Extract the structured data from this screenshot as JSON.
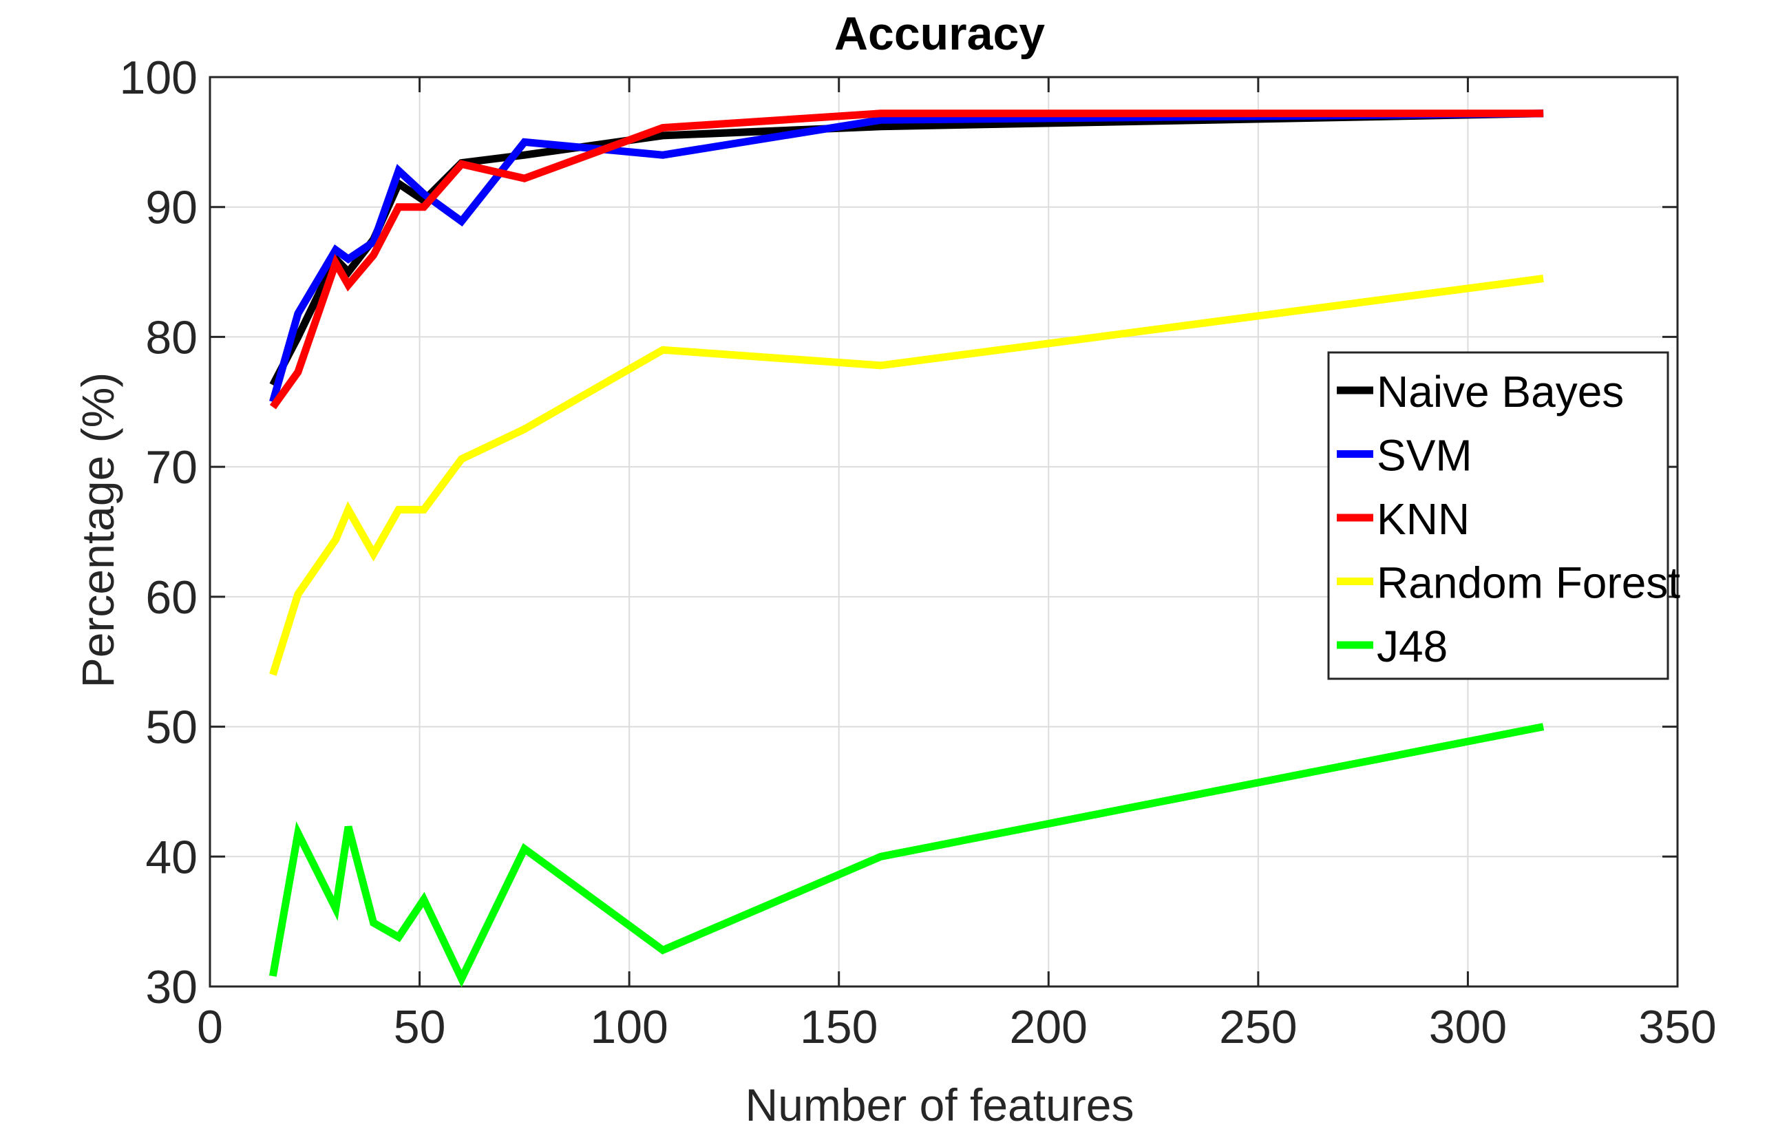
{
  "chart_data": {
    "type": "line",
    "title": "Accuracy",
    "xlabel": "Number of features",
    "ylabel": "Percentage (%)",
    "xlim": [
      0,
      350
    ],
    "ylim": [
      30,
      100
    ],
    "xticks": [
      0,
      50,
      100,
      150,
      200,
      250,
      300,
      350
    ],
    "yticks": [
      30,
      40,
      50,
      60,
      70,
      80,
      90,
      100
    ],
    "grid": true,
    "legend_position": "right",
    "series": [
      {
        "name": "Naive Bayes",
        "color": "#000000",
        "x": [
          15,
          21,
          30,
          33,
          39,
          45,
          51,
          60,
          75,
          108,
          160,
          318
        ],
        "y": [
          76.3,
          80.0,
          86.0,
          85.0,
          87.5,
          91.8,
          90.5,
          93.4,
          94.0,
          95.5,
          96.2,
          97.2
        ]
      },
      {
        "name": "SVM",
        "color": "#0000ff",
        "x": [
          15,
          21,
          30,
          33,
          39,
          45,
          51,
          60,
          75,
          108,
          160,
          318
        ],
        "y": [
          75.0,
          81.8,
          86.7,
          86.0,
          87.3,
          92.8,
          91.0,
          88.9,
          95.0,
          94.0,
          96.7,
          97.2
        ]
      },
      {
        "name": "KNN",
        "color": "#ff0000",
        "x": [
          15,
          21,
          30,
          33,
          39,
          45,
          51,
          60,
          75,
          108,
          160,
          318
        ],
        "y": [
          74.6,
          77.3,
          85.7,
          84.0,
          86.3,
          90.0,
          90.0,
          93.3,
          92.2,
          96.1,
          97.2,
          97.2
        ]
      },
      {
        "name": "Random Forest",
        "color": "#ffff00",
        "x": [
          15,
          21,
          30,
          33,
          39,
          45,
          51,
          60,
          75,
          108,
          160,
          318
        ],
        "y": [
          54.0,
          60.2,
          64.4,
          66.7,
          63.3,
          66.7,
          66.7,
          70.6,
          72.9,
          79.0,
          77.8,
          84.5
        ]
      },
      {
        "name": "J48",
        "color": "#00ff00",
        "x": [
          15,
          21,
          30,
          33,
          39,
          45,
          51,
          60,
          75,
          108,
          160,
          318
        ],
        "y": [
          30.8,
          41.8,
          36.0,
          42.3,
          34.9,
          33.8,
          36.7,
          30.6,
          40.6,
          32.8,
          40.0,
          50.0
        ]
      }
    ]
  }
}
